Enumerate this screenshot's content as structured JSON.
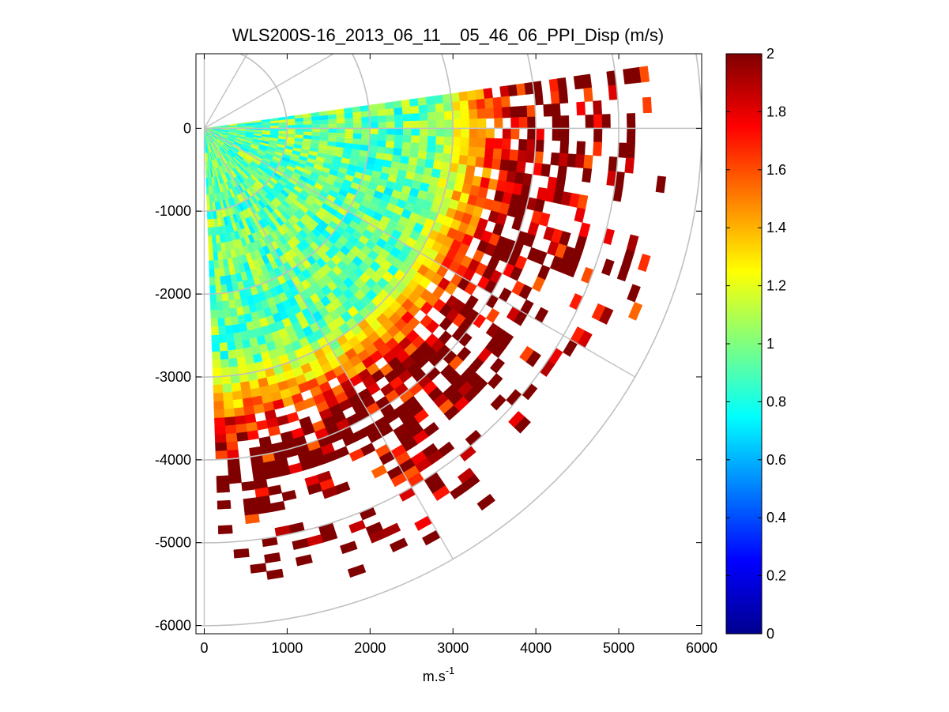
{
  "chart_data": {
    "type": "heatmap",
    "subtype": "polar-ppi",
    "title": "WLS200S-16_2013_06_11__05_46_06_PPI_Disp (m/s)",
    "xlabel": "m.s",
    "xlabel_superscript": "-1",
    "ylabel": "",
    "xlim": [
      -100,
      6000
    ],
    "ylim": [
      -6100,
      900
    ],
    "x_ticks": [
      "0",
      "1000",
      "2000",
      "3000",
      "4000",
      "5000",
      "6000"
    ],
    "x_tick_values": [
      0,
      1000,
      2000,
      3000,
      4000,
      5000,
      6000
    ],
    "y_ticks": [
      "0",
      "-1000",
      "-2000",
      "-3000",
      "-4000",
      "-5000",
      "-6000"
    ],
    "y_tick_values": [
      0,
      -1000,
      -2000,
      -3000,
      -4000,
      -5000,
      -6000
    ],
    "colormap": "jet",
    "clim": [
      0,
      2
    ],
    "colorbar_ticks": [
      "0",
      "0.2",
      "0.4",
      "0.6",
      "0.8",
      "1",
      "1.2",
      "1.4",
      "1.6",
      "1.8",
      "2"
    ],
    "colorbar_tick_values": [
      0,
      0.2,
      0.4,
      0.6,
      0.8,
      1,
      1.2,
      1.4,
      1.6,
      1.8,
      2
    ],
    "sector": {
      "azimuth_start_deg": 8,
      "azimuth_end_deg": -88,
      "range_gate_m": 100,
      "beam_width_deg": 2,
      "max_range_m": 5700
    },
    "polar_grid": {
      "rings_m": [
        1000,
        2000,
        3000,
        4000,
        5000,
        6000
      ],
      "spokes_deg": [
        0,
        -30,
        -60,
        -90,
        30,
        60,
        90
      ]
    },
    "grid_color": "#c0c0c0",
    "value_model": {
      "inner_range_m": 2800,
      "inner_value_mean": 0.95,
      "inner_value_spread": 0.25,
      "outer_value_mean": 1.85,
      "coverage_drop_start_m": 3300,
      "random_seed": 7
    }
  }
}
